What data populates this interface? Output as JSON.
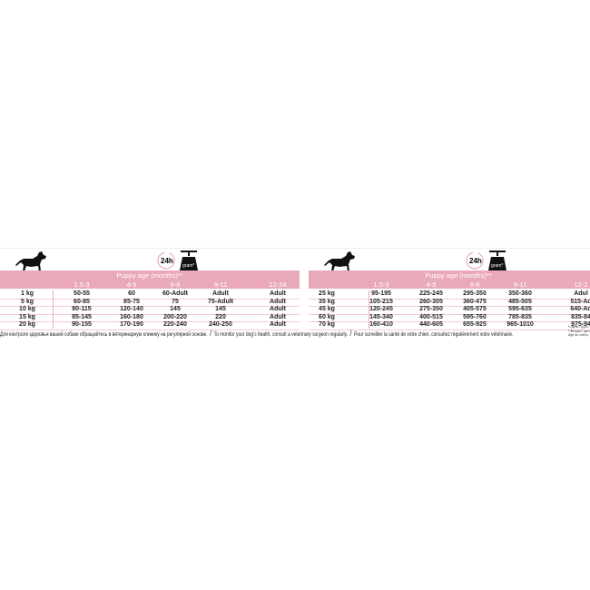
{
  "badge": {
    "hours": "24h",
    "unit": "gram*"
  },
  "header_title": "Puppy age (months)**",
  "columns": [
    "1.5-3",
    "4-5",
    "6-8",
    "9-11",
    "12-24"
  ],
  "columns_right": [
    "1.5-3",
    "4-5",
    "6-8",
    "9-11",
    "12-2"
  ],
  "left_table": [
    [
      "1 kg",
      "50-55",
      "60",
      "60-Adult",
      "Adult",
      "Adult"
    ],
    [
      "5 kg",
      "60-85",
      "85-75",
      "75",
      "75-Adult",
      "Adult"
    ],
    [
      "10 kg",
      "80-115",
      "120-140",
      "145",
      "145",
      "Adult"
    ],
    [
      "15 kg",
      "85-145",
      "160-180",
      "200-220",
      "220",
      "Adult"
    ],
    [
      "20 kg",
      "90-155",
      "170-190",
      "220-240",
      "240-250",
      "Adult"
    ]
  ],
  "right_table": [
    [
      "25 kg",
      "95-195",
      "225-245",
      "295-350",
      "350-360",
      "Adul"
    ],
    [
      "35 kg",
      "105-215",
      "260-305",
      "360-475",
      "485-505",
      "515-Ad"
    ],
    [
      "45 kg",
      "120-245",
      "275-350",
      "405-575",
      "595-635",
      "640-Ad"
    ],
    [
      "60 kg",
      "145-340",
      "400-515",
      "595-760",
      "785-835",
      "835-84"
    ],
    [
      "70 kg",
      "160-410",
      "440-605",
      "655-925",
      "965-1010",
      "975-94"
    ]
  ],
  "footer": {
    "ru": "Для контроля здоровья вашей собаки обращайтесь в ветеринарную клинику на регулярной основе.",
    "en": "To monitor your dog's health, consult a veterinary surgeon regularly.",
    "fr": "Pour surveiller la santé de votre chien, consultez régulièrement votre vétérinaire.",
    "separator": "/"
  },
  "notes": [
    "*г/день / g/jou",
    "**Возраст щен",
    "Âge du chiot p"
  ],
  "colors": {
    "header_pink": "#e9a9bb",
    "row_line": "#f2c9d4"
  }
}
